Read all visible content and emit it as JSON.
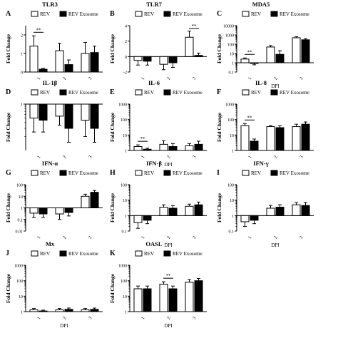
{
  "colors": {
    "rev": "#ffffff",
    "exosome": "#000000",
    "axis": "#000000"
  },
  "chart_data": [
    {
      "panel": "A",
      "title": "TLR3",
      "type": "bar",
      "scale": "linear",
      "ylim": [
        0,
        2.5
      ],
      "ytick_values": [
        0,
        1,
        2
      ],
      "ytick_labels": [
        "0",
        "1",
        "2"
      ],
      "categories": [
        "1",
        "2",
        "3"
      ],
      "xlabel": "DPI",
      "xlabel_show": false,
      "ylabel": "Fold Change",
      "series": [
        {
          "name": "REV",
          "values": [
            1.4,
            1.15,
            1.0
          ],
          "errors": [
            0.55,
            0.4,
            0.6
          ]
        },
        {
          "name": "REV Exosome",
          "values": [
            0.15,
            0.4,
            1.05
          ],
          "errors": [
            0.05,
            0.25,
            0.35
          ]
        }
      ],
      "annotations": [
        {
          "text": "**",
          "group": 0
        }
      ]
    },
    {
      "panel": "B",
      "title": "TLR7",
      "type": "bar",
      "scale": "linear",
      "ylim": [
        -2,
        4
      ],
      "ytick_values": [
        -2,
        0,
        2,
        4
      ],
      "ytick_labels": [
        "-2",
        "0",
        "2",
        "4"
      ],
      "categories": [
        "1",
        "2",
        "3"
      ],
      "xlabel": "DPI",
      "xlabel_show": false,
      "ylabel": "Fold Change",
      "series": [
        {
          "name": "REV",
          "values": [
            -0.5,
            -1.0,
            2.5
          ],
          "errors": [
            0.6,
            0.7,
            0.8
          ]
        },
        {
          "name": "REV Exosome",
          "values": [
            -0.6,
            -0.8,
            0.15
          ],
          "errors": [
            0.5,
            0.6,
            0.3
          ]
        }
      ],
      "annotations": [
        {
          "text": "**",
          "group": 2
        }
      ]
    },
    {
      "panel": "C",
      "title": "MDA5",
      "type": "bar",
      "scale": "log",
      "ylim": [
        0.1,
        10000
      ],
      "ytick_values": [
        0.1,
        1,
        10,
        100,
        1000,
        10000
      ],
      "ytick_labels": [
        "0.1",
        "1",
        "10",
        "100",
        "1000",
        "10000"
      ],
      "categories": [
        "1",
        "2",
        "3"
      ],
      "xlabel": "DPI",
      "xlabel_show": true,
      "ylabel": "Fold Change",
      "series": [
        {
          "name": "REV",
          "values": [
            2.5,
            50,
            500
          ],
          "errors": [
            0.8,
            20,
            150
          ]
        },
        {
          "name": "REV Exosome",
          "values": [
            0.9,
            8,
            300
          ],
          "errors": [
            0.3,
            12,
            90
          ]
        }
      ],
      "annotations": [
        {
          "text": "**",
          "group": 0
        }
      ]
    },
    {
      "panel": "D",
      "title": "IL-1β",
      "type": "bar",
      "scale": "log",
      "ylim": [
        0.1,
        1
      ],
      "ytick_values": [
        1
      ],
      "ytick_labels": [
        "1"
      ],
      "categories": [
        "1",
        "2",
        "3"
      ],
      "xlabel": "DPI",
      "xlabel_show": false,
      "ylabel": "Fold Change",
      "series": [
        {
          "name": "REV",
          "values": [
            0.5,
            0.55,
            0.45
          ],
          "errors": [
            0.25,
            0.2,
            0.25
          ]
        },
        {
          "name": "REV Exosome",
          "values": [
            0.45,
            0.3,
            0.3
          ],
          "errors": [
            0.2,
            0.15,
            0.15
          ]
        }
      ],
      "annotations": []
    },
    {
      "panel": "E",
      "title": "IL-6",
      "type": "bar",
      "scale": "log",
      "ylim": [
        1,
        1000
      ],
      "ytick_values": [
        1,
        10,
        100,
        1000
      ],
      "ytick_labels": [
        "1",
        "10",
        "100",
        "1000"
      ],
      "categories": [
        "1",
        "2",
        "3"
      ],
      "xlabel": "DPI",
      "xlabel_show": true,
      "ylabel": "Fold Change",
      "series": [
        {
          "name": "REV",
          "values": [
            1.8,
            2.5,
            2.0
          ],
          "errors": [
            0.5,
            1.8,
            0.8
          ]
        },
        {
          "name": "REV Exosome",
          "values": [
            1.2,
            1.8,
            2.5
          ],
          "errors": [
            0.2,
            1.0,
            1.5
          ]
        }
      ],
      "annotations": [
        {
          "text": "**",
          "group": 0
        }
      ]
    },
    {
      "panel": "F",
      "title": "IL-8",
      "type": "bar",
      "scale": "log",
      "ylim": [
        1,
        1000
      ],
      "ytick_values": [
        1,
        10,
        100,
        1000
      ],
      "ytick_labels": [
        "1",
        "10",
        "100",
        "1000"
      ],
      "categories": [
        "1",
        "2",
        "3"
      ],
      "xlabel": "DPI",
      "xlabel_show": false,
      "ylabel": "Fold Change",
      "series": [
        {
          "name": "REV",
          "values": [
            40,
            35,
            35
          ],
          "errors": [
            15,
            5,
            15
          ]
        },
        {
          "name": "REV Exosome",
          "values": [
            4,
            30,
            50
          ],
          "errors": [
            1.5,
            10,
            20
          ]
        }
      ],
      "annotations": [
        {
          "text": "**",
          "group": 0
        }
      ]
    },
    {
      "panel": "G",
      "title": "IFN-α",
      "type": "bar",
      "scale": "log",
      "ylim": [
        0.01,
        100
      ],
      "ytick_values": [
        0.01,
        0.1,
        1,
        10,
        100
      ],
      "ytick_labels": [
        "0.01",
        "0.1",
        "1",
        "10",
        "100"
      ],
      "categories": [
        "1",
        "2",
        "3"
      ],
      "xlabel": "DPI",
      "xlabel_show": false,
      "ylabel": "Fold Change",
      "series": [
        {
          "name": "REV",
          "values": [
            0.35,
            0.3,
            10
          ],
          "errors": [
            0.2,
            0.2,
            5
          ]
        },
        {
          "name": "REV Exosome",
          "values": [
            0.3,
            0.4,
            22
          ],
          "errors": [
            0.15,
            0.2,
            10
          ]
        }
      ],
      "annotations": []
    },
    {
      "panel": "H",
      "title": "IFN-β",
      "type": "bar",
      "scale": "log",
      "ylim": [
        0.1,
        100
      ],
      "ytick_values": [
        0.1,
        1,
        10,
        100
      ],
      "ytick_labels": [
        "0.1",
        "1",
        "10",
        "100"
      ],
      "categories": [
        "1",
        "2",
        "3"
      ],
      "xlabel": "DPI",
      "xlabel_show": true,
      "ylabel": "Fold Change",
      "series": [
        {
          "name": "REV",
          "values": [
            0.35,
            3.5,
            4
          ],
          "errors": [
            0.2,
            1.5,
            1.5
          ]
        },
        {
          "name": "REV Exosome",
          "values": [
            0.5,
            3,
            5
          ],
          "errors": [
            0.2,
            1.5,
            2.5
          ]
        }
      ],
      "annotations": []
    },
    {
      "panel": "I",
      "title": "IFN-γ",
      "type": "bar",
      "scale": "log",
      "ylim": [
        0.1,
        100
      ],
      "ytick_values": [
        0.1,
        1,
        10,
        100
      ],
      "ytick_labels": [
        "0.1",
        "1",
        "10",
        "100"
      ],
      "categories": [
        "1",
        "2",
        "3"
      ],
      "xlabel": "DPI",
      "xlabel_show": true,
      "ylabel": "Fold Change",
      "series": [
        {
          "name": "REV",
          "values": [
            0.4,
            3,
            5
          ],
          "errors": [
            0.2,
            1.5,
            2
          ]
        },
        {
          "name": "REV Exosome",
          "values": [
            0.5,
            3.5,
            4.5
          ],
          "errors": [
            0.2,
            1.5,
            2.5
          ]
        }
      ],
      "annotations": []
    },
    {
      "panel": "J",
      "title": "Mx",
      "type": "bar",
      "scale": "log",
      "ylim": [
        1,
        1000
      ],
      "ytick_values": [
        1,
        10,
        100,
        1000
      ],
      "ytick_labels": [
        "1",
        "10",
        "100",
        "1000"
      ],
      "categories": [
        "1",
        "2",
        "3"
      ],
      "xlabel": "DPI",
      "xlabel_show": true,
      "ylabel": "Fold Change",
      "series": [
        {
          "name": "REV",
          "values": [
            1.3,
            1.3,
            1.3
          ],
          "errors": [
            0.3,
            0.3,
            0.3
          ]
        },
        {
          "name": "REV Exosome",
          "values": [
            1.1,
            1.4,
            1.4
          ],
          "errors": [
            0.15,
            0.3,
            0.3
          ]
        }
      ],
      "annotations": []
    },
    {
      "panel": "K",
      "title": "OASL",
      "type": "bar",
      "scale": "log",
      "ylim": [
        1,
        1000
      ],
      "ytick_values": [
        1,
        10,
        100,
        1000
      ],
      "ytick_labels": [
        "1",
        "10",
        "100",
        "1000"
      ],
      "categories": [
        "1",
        "2",
        "3"
      ],
      "xlabel": "DPI",
      "xlabel_show": true,
      "ylabel": "Fold Change",
      "series": [
        {
          "name": "REV",
          "values": [
            30,
            60,
            80
          ],
          "errors": [
            15,
            25,
            40
          ]
        },
        {
          "name": "REV Exosome",
          "values": [
            30,
            30,
            100
          ],
          "errors": [
            15,
            15,
            40
          ]
        }
      ],
      "annotations": [
        {
          "text": "**",
          "group": 1
        }
      ]
    }
  ]
}
